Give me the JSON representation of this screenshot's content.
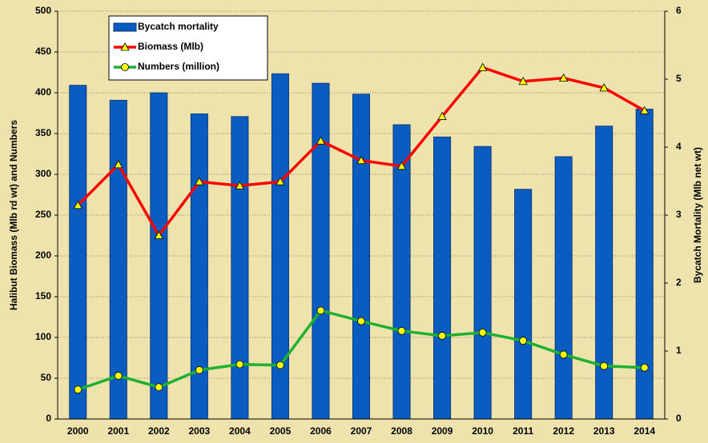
{
  "chart_data": {
    "type": "bar",
    "categories": [
      "2000",
      "2001",
      "2002",
      "2003",
      "2004",
      "2005",
      "2006",
      "2007",
      "2008",
      "2009",
      "2010",
      "2011",
      "2012",
      "2013",
      "2014"
    ],
    "series": [
      {
        "name": "Bycatch mortality",
        "type": "bar",
        "axis": "y2",
        "color": "#0a5cc0",
        "values": [
          4.91,
          4.69,
          4.8,
          4.49,
          4.45,
          5.08,
          4.94,
          4.78,
          4.33,
          4.15,
          4.01,
          3.38,
          3.86,
          4.31,
          4.56
        ]
      },
      {
        "name": "Biomass (Mlb)",
        "type": "line",
        "marker": "triangle",
        "color": "#ff0000",
        "marker_color": "#ffff00",
        "values": [
          262,
          312,
          225,
          291,
          286,
          291,
          341,
          317,
          310,
          371,
          431,
          414,
          418,
          406,
          378
        ]
      },
      {
        "name": "Numbers (million)",
        "type": "line",
        "marker": "circle",
        "color": "#1fb030",
        "marker_color": "#ffff00",
        "values": [
          36,
          53,
          39,
          60,
          67,
          66,
          133,
          120,
          108,
          102,
          106,
          96,
          79,
          65,
          63
        ]
      }
    ],
    "y_label": "Halibut Biomass (Mlb rd wt) and Numbers",
    "y2_label": "Bycatch Mortality (Mlb net wt)",
    "ylim": [
      0,
      500
    ],
    "yticks": [
      0,
      50,
      100,
      150,
      200,
      250,
      300,
      350,
      400,
      450,
      500
    ],
    "y2lim": [
      0,
      6
    ],
    "y2ticks": [
      0,
      1,
      2,
      3,
      4,
      5,
      6
    ],
    "grid": true,
    "legend": "upper left"
  }
}
